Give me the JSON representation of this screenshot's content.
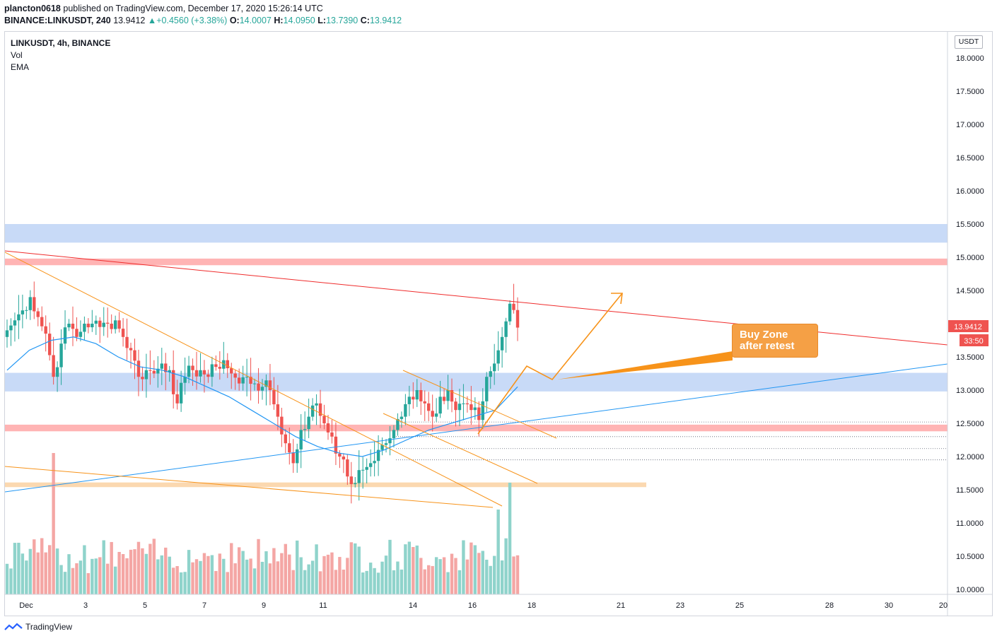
{
  "header": {
    "author": "plancton0618",
    "published_text": "published on TradingView.com, December 17, 2020 15:26:14 UTC",
    "symbol_line": "BINANCE:LINKUSDT, 240",
    "last": "13.9412",
    "change": "+0.4560 (+3.38%)",
    "o_label": "O:",
    "o_val": "14.0007",
    "h_label": "H:",
    "h_val": "14.0950",
    "l_label": "L:",
    "l_val": "13.7390",
    "c_label": "C:",
    "c_val": "13.9412"
  },
  "legend": {
    "symbol": "LINKUSDT, 4h, BINANCE",
    "vol": "Vol",
    "ema": "EMA"
  },
  "price_axis": {
    "currency": "USDT",
    "ticks": [
      "18.0000",
      "17.5000",
      "17.0000",
      "16.5000",
      "16.0000",
      "15.5000",
      "15.0000",
      "14.5000",
      "14.0000",
      "13.5000",
      "13.0000",
      "12.5000",
      "12.0000",
      "11.5000",
      "11.0000",
      "10.5000",
      "10.0000"
    ],
    "last_price_label": "13.9412",
    "countdown_label": "33:50"
  },
  "time_axis": {
    "ticks": [
      "Dec",
      "3",
      "5",
      "7",
      "9",
      "11",
      "14",
      "16",
      "18",
      "21",
      "23",
      "25",
      "28",
      "30",
      "20"
    ]
  },
  "annotation": {
    "line1": "Buy Zone",
    "line2": "after retest"
  },
  "footer": {
    "brand": "TradingView"
  },
  "colors": {
    "up": "#26a69a",
    "down": "#ef5350",
    "vol_up": "#8fd3cb",
    "vol_down": "#f4a6a4",
    "ema": "#2196f3",
    "orange": "#f7931a",
    "blue_zone": "#c8daf7",
    "red_zone": "#ffb4b4",
    "orange_zone": "#fbd8b0",
    "red_trend": "#ef2b2b",
    "blue_trend": "#2196f3"
  },
  "chart_data": {
    "type": "candlestick",
    "symbol": "LINKUSDT",
    "interval": "4h",
    "exchange": "BINANCE",
    "y_range": [
      10.0,
      18.0
    ],
    "x_ticks": [
      "Dec",
      "3",
      "5",
      "7",
      "9",
      "11",
      "14",
      "16",
      "18",
      "21",
      "23",
      "25",
      "28",
      "30",
      "20"
    ],
    "indicators": [
      "Vol",
      "EMA"
    ],
    "close_path": [
      13.9,
      14.05,
      14.2,
      14.4,
      14.1,
      13.85,
      13.2,
      13.7,
      14.0,
      13.8,
      14.0,
      14.0,
      13.95,
      14.0,
      14.05,
      13.8,
      13.6,
      13.2,
      13.3,
      13.25,
      13.4,
      13.3,
      12.8,
      13.2,
      13.3,
      13.3,
      13.2,
      13.35,
      13.45,
      13.25,
      13.1,
      13.2,
      13.1,
      13.05,
      13.0,
      12.6,
      12.2,
      11.9,
      12.4,
      12.6,
      12.8,
      12.5,
      12.3,
      12.0,
      11.7,
      11.6,
      11.8,
      11.9,
      12.1,
      12.2,
      12.4,
      12.6,
      12.9,
      13.0,
      12.8,
      12.6,
      12.9,
      13.0,
      12.7,
      12.8,
      12.7,
      12.55,
      13.2,
      13.4,
      13.8,
      14.3,
      13.9412
    ],
    "ema_path": [
      13.3,
      13.6,
      13.75,
      13.8,
      13.7,
      13.5,
      13.35,
      13.3,
      13.2,
      13.05,
      12.9,
      12.7,
      12.5,
      12.3,
      12.15,
      12.05,
      12.0,
      12.1,
      12.25,
      12.4,
      12.5,
      12.6,
      12.7,
      13.05
    ],
    "levels": {
      "resistance_zone_blue": [
        15.22,
        15.5
      ],
      "resistance_zone_red": [
        14.88,
        14.98
      ],
      "support_zone_blue": [
        12.98,
        13.26
      ],
      "support_zone_red": [
        12.38,
        12.48
      ],
      "support_zone_orange": [
        11.54,
        11.61
      ],
      "dotted_levels": [
        12.52,
        12.3,
        12.12,
        11.95
      ]
    },
    "projection": [
      [
        16.4,
        12.55
      ],
      [
        17.4,
        13.35
      ],
      [
        18.3,
        13.15
      ],
      [
        20.9,
        14.45
      ]
    ]
  }
}
